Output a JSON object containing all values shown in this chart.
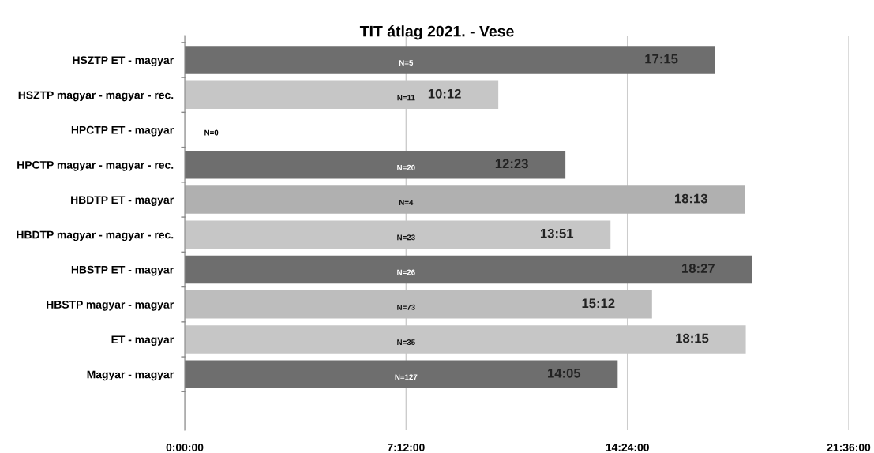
{
  "chart_data": {
    "type": "bar",
    "orientation": "horizontal",
    "title": "TIT átlag 2021. - Vese",
    "categories": [
      "HSZTP ET - magyar",
      "HSZTP magyar - magyar - rec.",
      "HPCTP ET - magyar",
      "HPCTP magyar - magyar - rec.",
      "HBDTP ET - magyar",
      "HBDTP magyar - magyar - rec.",
      "HBSTP ET - magyar",
      "HBSTP magyar - magyar",
      "ET - magyar",
      "Magyar - magyar"
    ],
    "values": [
      17.25,
      10.2,
      null,
      12.383,
      18.217,
      13.85,
      18.45,
      15.2,
      18.25,
      14.083
    ],
    "value_labels": [
      "17:15",
      "10:12",
      null,
      "12:23",
      "18:13",
      "13:51",
      "18:27",
      "15:12",
      "18:15",
      "14:05"
    ],
    "colors": [
      "#6e6e6e",
      "#c6c6c6",
      "#c6c6c6",
      "#6e6e6e",
      "#b0b0b0",
      "#c6c6c6",
      "#6e6e6e",
      "#bdbdbd",
      "#c6c6c6",
      "#6e6e6e"
    ],
    "annotations": [
      "N=5",
      "N=11",
      "N=0",
      "N=20",
      "N=4",
      "N=23",
      "N=26",
      "N=73",
      "N=35",
      "N=127"
    ],
    "xlim": [
      0,
      21.6
    ],
    "xticks": [
      {
        "value": 0,
        "label": "0:00:00"
      },
      {
        "value": 7.2,
        "label": "7:12:00"
      },
      {
        "value": 14.4,
        "label": "14:24:00"
      },
      {
        "value": 21.6,
        "label": "21:36:00"
      }
    ],
    "grid": "x"
  }
}
